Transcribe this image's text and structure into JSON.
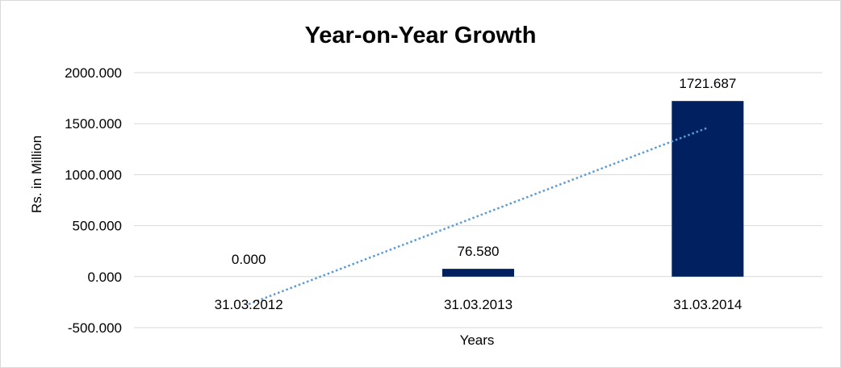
{
  "chart_data": {
    "type": "bar",
    "title": "Year-on-Year Growth",
    "xlabel": "Years",
    "ylabel": "Rs. in Million",
    "categories": [
      "31.03.2012",
      "31.03.2013",
      "31.03.2014"
    ],
    "values": [
      0,
      76.58,
      1721.687
    ],
    "data_labels": [
      "0.000",
      "76.580",
      "1721.687"
    ],
    "ylim": [
      -500,
      2000
    ],
    "yticks": [
      -500,
      0,
      500,
      1000,
      1500,
      2000
    ],
    "ytick_labels": [
      "-500.000",
      "0.000",
      "500.000",
      "1000.000",
      "1500.000",
      "2000.000"
    ],
    "grid": true,
    "legend": "none",
    "trendline": {
      "type": "linear",
      "style": "dotted",
      "start": -270,
      "end": 1460
    },
    "colors": {
      "bar": "#002060",
      "trendline": "#5b9bd5",
      "grid": "#d9d9d9"
    }
  }
}
